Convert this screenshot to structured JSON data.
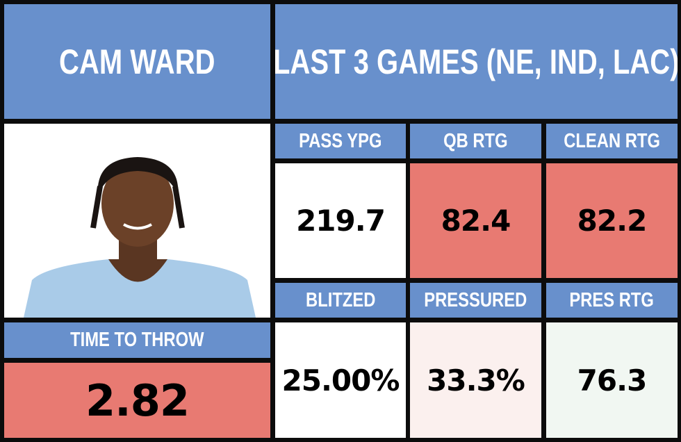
{
  "header": {
    "player": "CAM WARD",
    "title": "LAST 3 GAMES (NE, IND, LAC)"
  },
  "time_to_throw": {
    "label": "TIME TO THROW",
    "value": "2.82"
  },
  "stats": [
    {
      "label": "PASS YPG",
      "value": "219.7"
    },
    {
      "label": "QB RTG",
      "value": "82.4"
    },
    {
      "label": "CLEAN RTG",
      "value": "82.2"
    },
    {
      "label": "BLITZED",
      "value": "25.00%"
    },
    {
      "label": "PRESSURED",
      "value": "33.3%"
    },
    {
      "label": "PRES RTG",
      "value": "76.3"
    }
  ]
}
